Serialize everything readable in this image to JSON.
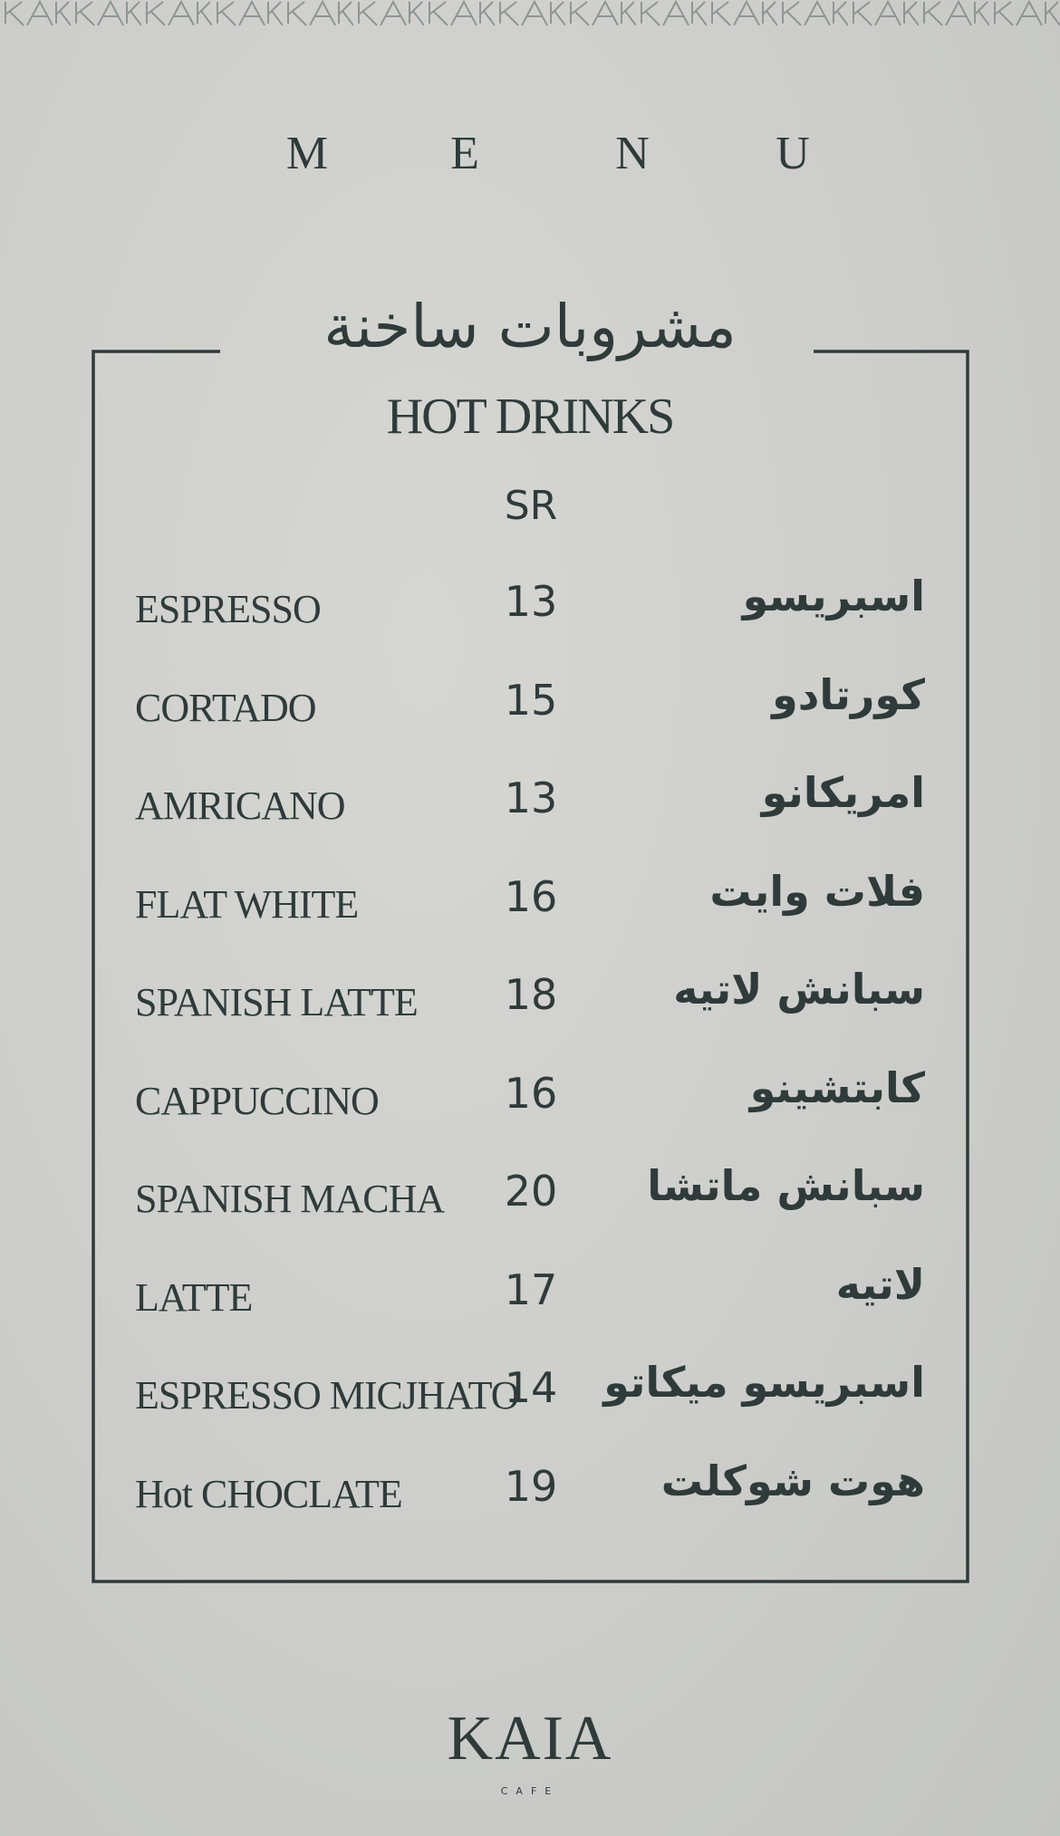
{
  "header": {
    "menu_letters": [
      "M",
      "E",
      "N",
      "U"
    ]
  },
  "section": {
    "title_ar": "مشروبات ساخنة",
    "title_en": "HOT DRINKS",
    "currency": "SR",
    "items": [
      {
        "en": "ESPRESSO",
        "price": 13,
        "ar": "اسبريسو"
      },
      {
        "en": "CORTADO",
        "price": 15,
        "ar": "كورتادو"
      },
      {
        "en": "AMRICANO",
        "price": 13,
        "ar": "امريكانو"
      },
      {
        "en": "FLAT WHITE",
        "price": 16,
        "ar": "فلات وايت"
      },
      {
        "en": "SPANISH LATTE",
        "price": 18,
        "ar": "سبانش لاتيه"
      },
      {
        "en": "CAPPUCCINO",
        "price": 16,
        "ar": "كابتشينو"
      },
      {
        "en": "SPANISH MACHA",
        "price": 20,
        "ar": "سبانش ماتشا"
      },
      {
        "en": "LATTE",
        "price": 17,
        "ar": "لاتيه"
      },
      {
        "en": "ESPRESSO MICJHATO",
        "price": 14,
        "ar": "اسبريسو ميكاتو"
      },
      {
        "en": "Hot CHOCLATE",
        "price": 19,
        "ar": "هوت شوكلت"
      }
    ]
  },
  "footer": {
    "brand": "KAIA",
    "subtitle": "CAFE"
  }
}
